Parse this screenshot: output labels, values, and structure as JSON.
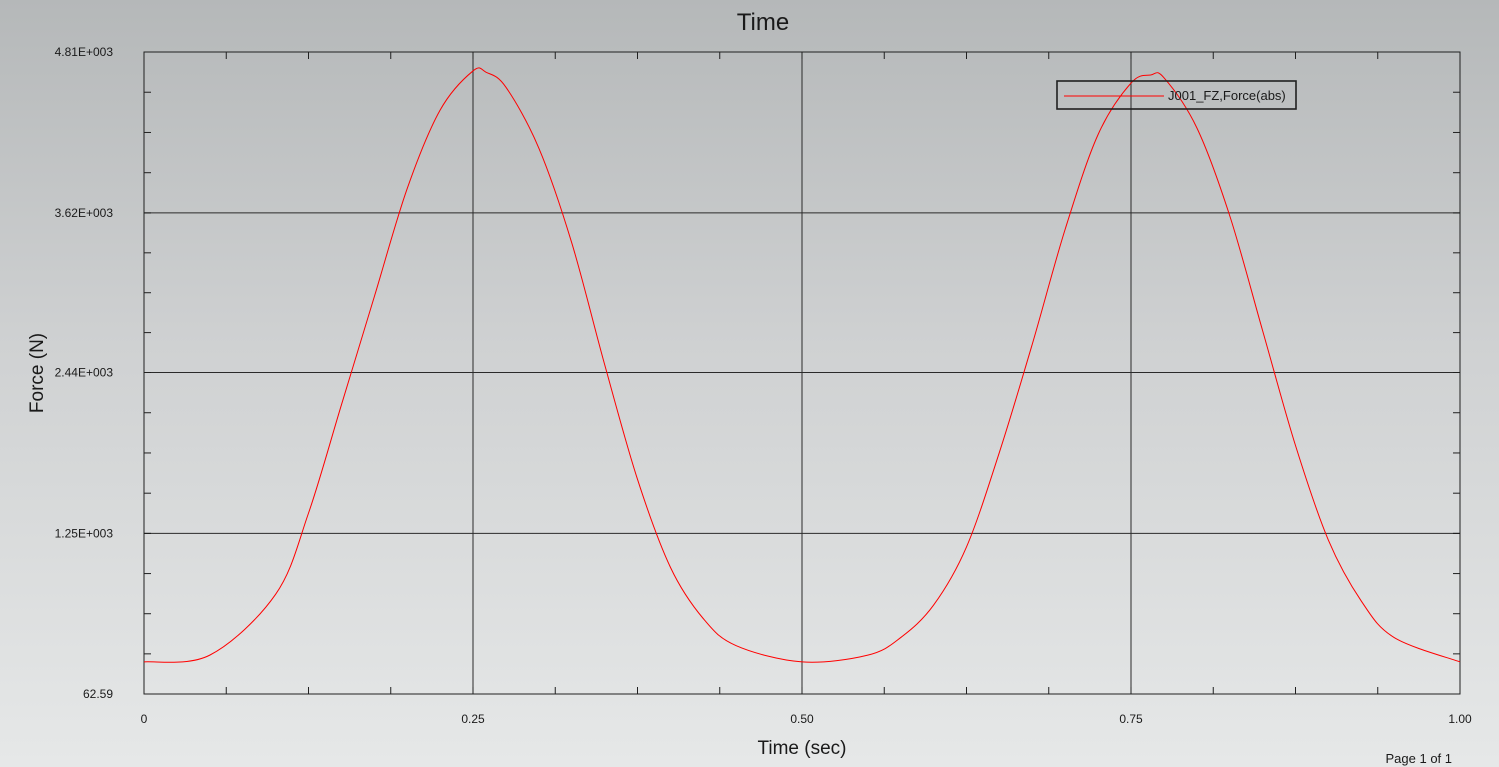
{
  "page_footer": "Page 1 of 1",
  "chart_data": {
    "type": "line",
    "title": "Time",
    "xlabel": "Time (sec)",
    "ylabel": "Force (N)",
    "xlim": [
      0,
      1.0
    ],
    "ylim": [
      62.59,
      4810
    ],
    "x_ticks": [
      {
        "value": 0,
        "label": "0"
      },
      {
        "value": 0.25,
        "label": "0.25"
      },
      {
        "value": 0.5,
        "label": "0.50"
      },
      {
        "value": 0.75,
        "label": "0.75"
      },
      {
        "value": 1.0,
        "label": "1.00"
      }
    ],
    "y_ticks": [
      {
        "value": 62.59,
        "label": "62.59"
      },
      {
        "value": 1250,
        "label": "1.25E+003"
      },
      {
        "value": 2440,
        "label": "2.44E+003"
      },
      {
        "value": 3620,
        "label": "3.62E+003"
      },
      {
        "value": 4810,
        "label": "4.81E+003"
      }
    ],
    "grid": true,
    "legend_position": "top-right",
    "series": [
      {
        "name": "J001_FZ,Force(abs)",
        "color": "#ff0000",
        "x": [
          0,
          0.05,
          0.1,
          0.125,
          0.15,
          0.175,
          0.2,
          0.225,
          0.25,
          0.26,
          0.275,
          0.3,
          0.325,
          0.35,
          0.375,
          0.4,
          0.425,
          0.45,
          0.5,
          0.55,
          0.575,
          0.6,
          0.625,
          0.65,
          0.675,
          0.7,
          0.725,
          0.75,
          0.765,
          0.775,
          0.8,
          0.825,
          0.85,
          0.875,
          0.9,
          0.925,
          0.95,
          1.0
        ],
        "y": [
          300,
          350,
          800,
          1400,
          2200,
          3000,
          3800,
          4380,
          4670,
          4660,
          4550,
          4100,
          3400,
          2500,
          1650,
          1000,
          620,
          420,
          300,
          350,
          480,
          720,
          1150,
          1850,
          2650,
          3500,
          4200,
          4580,
          4640,
          4620,
          4250,
          3600,
          2750,
          1900,
          1200,
          750,
          480,
          300
        ]
      }
    ]
  }
}
